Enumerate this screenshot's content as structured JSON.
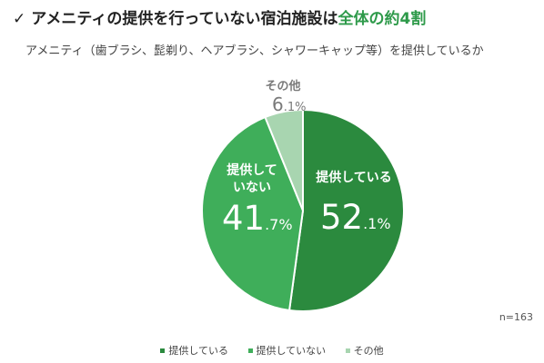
{
  "title": {
    "check": "✓",
    "prefix": "アメニティの提供を行っていない宿泊施設は",
    "highlight": "全体の約4割"
  },
  "subtitle": "アメニティ（歯ブラシ、髭剃り、ヘアブラシ、シャワーキャップ等）を提供しているか",
  "sample_size": "n=163",
  "colors": {
    "title_highlight": "#2e9a4a"
  },
  "chart_data": {
    "type": "pie",
    "title": "",
    "start_angle_deg": 0,
    "direction": "clockwise",
    "slices": [
      {
        "label": "提供している",
        "label_lines": [
          "提供している"
        ],
        "value": 52.1,
        "int_part": "52",
        "dec_part": ".1%",
        "color": "#2b8a3e",
        "text_color": "#ffffff"
      },
      {
        "label": "提供していない",
        "label_lines": [
          "提供して",
          "いない"
        ],
        "value": 41.7,
        "int_part": "41",
        "dec_part": ".7%",
        "color": "#3fae5a",
        "text_color": "#ffffff"
      },
      {
        "label": "その他",
        "label_lines": [
          "その他"
        ],
        "value": 6.1,
        "int_part": "6",
        "dec_part": ".1%",
        "color": "#a8d5b0",
        "text_color": "#7a7a7a"
      }
    ],
    "legend": [
      "提供している",
      "提供していない",
      "その他"
    ]
  }
}
